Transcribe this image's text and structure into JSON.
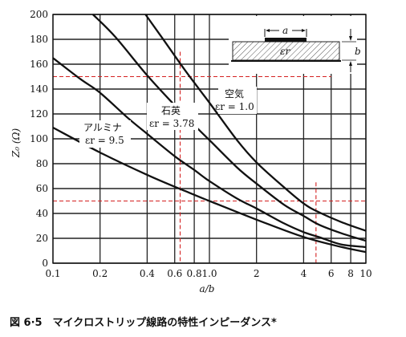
{
  "chart_data": {
    "type": "line",
    "title": "",
    "caption": "図 6·5　マイクロストリップ線路の特性インピーダンス*",
    "xlabel": "a/b",
    "ylabel": "Z₀ (Ω)",
    "xscale": "log",
    "xlim": [
      0.1,
      10
    ],
    "ylim": [
      0,
      200
    ],
    "x_ticks": [
      0.1,
      0.2,
      0.4,
      0.6,
      0.8,
      1.0,
      2,
      4,
      6,
      8,
      10
    ],
    "x_tick_labels": [
      "0.1",
      "0.2",
      "0.4",
      "0.6",
      "0.8",
      "1.0",
      "2",
      "4",
      "6",
      "8",
      "10"
    ],
    "y_ticks": [
      0,
      20,
      40,
      60,
      80,
      100,
      120,
      140,
      160,
      180,
      200
    ],
    "y_tick_labels": [
      "0",
      "20",
      "40",
      "60",
      "80",
      "100",
      "120",
      "140",
      "160",
      "180",
      "200"
    ],
    "series": [
      {
        "name": "空気 εr=1.0",
        "label_lines": [
          "空気",
          "εr = 1.0"
        ],
        "x": [
          0.39,
          0.5,
          0.7,
          1.0,
          1.5,
          2,
          3,
          4,
          5,
          7,
          10
        ],
        "y": [
          200,
          181,
          155,
          129,
          99,
          81,
          61,
          48,
          41,
          33,
          26
        ]
      },
      {
        "name": "石英 εr=3.78",
        "label_lines": [
          "石英",
          "εr = 3.78"
        ],
        "x": [
          0.18,
          0.25,
          0.4,
          0.6,
          0.8,
          1.0,
          1.5,
          2,
          3,
          4,
          5,
          7,
          10
        ],
        "y": [
          200,
          182,
          151,
          127,
          111,
          99,
          77,
          64,
          47,
          38,
          31,
          24,
          18
        ]
      },
      {
        "name": "アルミナ εr=9.5",
        "label_lines": [
          "アルミナ",
          "εr = 9.5"
        ],
        "x": [
          0.1,
          0.15,
          0.2,
          0.3,
          0.4,
          0.6,
          0.8,
          1.0,
          1.5,
          2,
          3,
          4,
          5,
          7,
          10
        ],
        "y": [
          165,
          148,
          137,
          117,
          104,
          86,
          75,
          66,
          52,
          44,
          32,
          25,
          21,
          15,
          13
        ]
      }
    ],
    "extra_curve": {
      "x": [
        0.1,
        0.2,
        0.4,
        0.7,
        1.0,
        2,
        4,
        7,
        10
      ],
      "y": [
        109,
        89,
        71,
        58,
        50,
        35,
        21,
        13,
        9
      ]
    },
    "reference_lines": {
      "color": "#d42020",
      "horizontal": [
        150,
        50
      ],
      "vertical": [
        0.65,
        4.8
      ]
    },
    "grid": true,
    "inset": {
      "dimension_a": "a",
      "dimension_b": "b",
      "dielectric_label": "εr"
    }
  }
}
